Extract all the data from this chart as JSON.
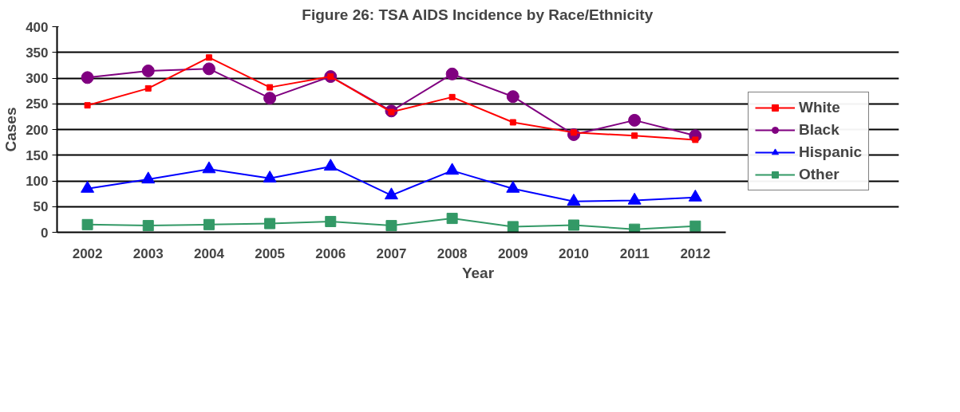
{
  "chart_data": {
    "type": "line",
    "title": "Figure 26: TSA AIDS Incidence by Race/Ethnicity",
    "xlabel": "Year",
    "ylabel": "Cases",
    "categories": [
      "2002",
      "2003",
      "2004",
      "2005",
      "2006",
      "2007",
      "2008",
      "2009",
      "2010",
      "2011",
      "2012"
    ],
    "series": [
      {
        "name": "White",
        "color": "#ff0000",
        "marker": "square",
        "values": [
          247,
          280,
          340,
          282,
          303,
          234,
          263,
          214,
          194,
          188,
          180
        ]
      },
      {
        "name": "Black",
        "color": "#800080",
        "marker": "circle",
        "values": [
          301,
          314,
          318,
          261,
          303,
          236,
          308,
          264,
          190,
          218,
          188
        ]
      },
      {
        "name": "Hispanic",
        "color": "#0000ff",
        "marker": "triangle",
        "values": [
          85,
          103,
          123,
          105,
          128,
          72,
          120,
          85,
          60,
          62,
          68
        ]
      },
      {
        "name": "Other",
        "color": "#339966",
        "marker": "square",
        "values": [
          15,
          13,
          15,
          17,
          21,
          13,
          27,
          11,
          14,
          6,
          12
        ]
      }
    ],
    "ylim": [
      0,
      400
    ],
    "yticks": [
      0,
      50,
      100,
      150,
      200,
      250,
      300,
      350,
      400
    ],
    "grid": "y",
    "legend": "right"
  }
}
